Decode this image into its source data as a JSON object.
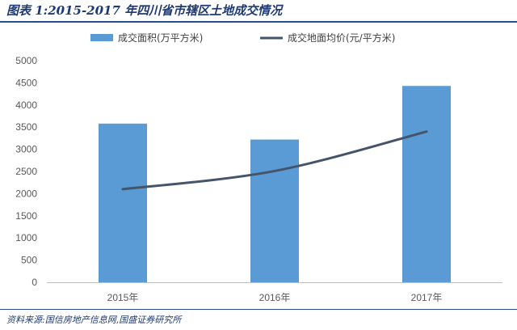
{
  "title": "图表 1:2015-2017 年四川省市辖区土地成交情况",
  "source": "资料来源:国信房地产信息网,国盛证券研究所",
  "colors": {
    "bar": "#5b9bd5",
    "line": "#44546a",
    "axis": "#bfbfbf",
    "title": "#1f3a73"
  },
  "chart_data": {
    "type": "bar",
    "categories": [
      "2015年",
      "2016年",
      "2017年"
    ],
    "series": [
      {
        "name": "成交面积(万平方米)",
        "type": "bar",
        "values": [
          3580,
          3220,
          4430
        ]
      },
      {
        "name": "成交地面均价(元/平方米)",
        "type": "line",
        "values": [
          2100,
          2510,
          3400
        ]
      }
    ],
    "ylim": [
      0,
      5000
    ],
    "yticks": [
      "0",
      "500",
      "1000",
      "1500",
      "2000",
      "2500",
      "3000",
      "3500",
      "4000",
      "4500",
      "5000"
    ],
    "grid": false,
    "legend": "top"
  }
}
